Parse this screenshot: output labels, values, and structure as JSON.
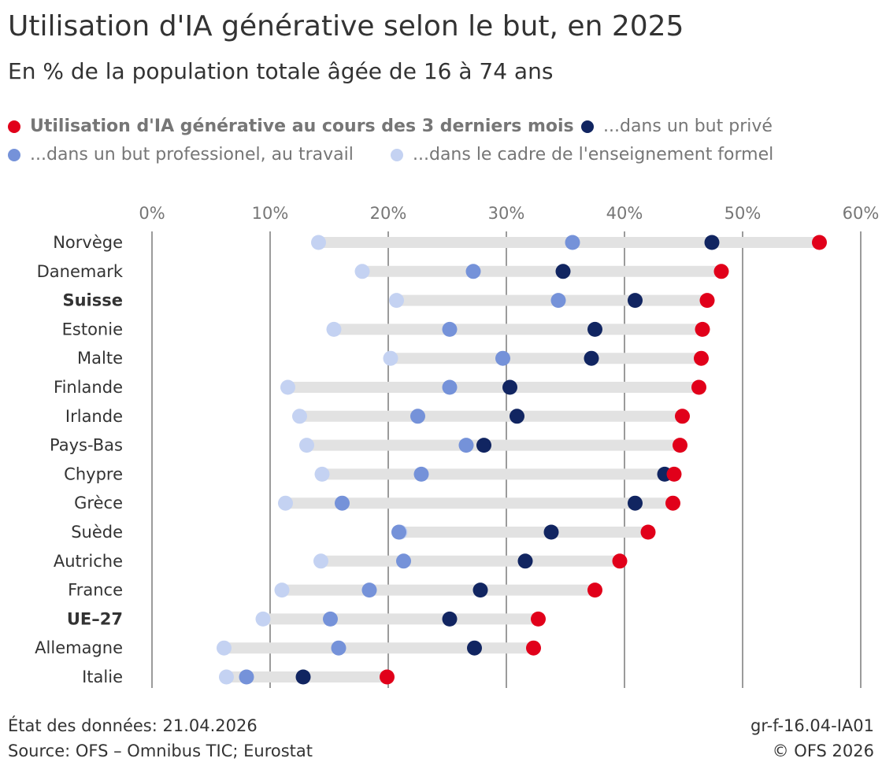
{
  "header": {
    "title": "Utilisation d'IA générative selon le but, en 2025",
    "subtitle": "En % de la population totale âgée de 16 à 74 ans"
  },
  "legend": [
    {
      "label": "Utilisation d'IA générative au cours des 3 derniers mois",
      "color": "#e1001a",
      "bold": true
    },
    {
      "label": "...dans un but privé",
      "color": "#112561",
      "bold": false
    },
    {
      "label": "...dans un but professionel, au travail",
      "color": "#7592d9",
      "bold": false
    },
    {
      "label": "...dans le cadre de l'enseignement formel",
      "color": "#c4d2f2",
      "bold": false
    }
  ],
  "footer": {
    "date": "État des données: 21.04.2026",
    "source": "Source: OFS – Omnibus TIC; Eurostat",
    "code": "gr-f-16.04-IA01",
    "copyright": "© OFS 2026"
  },
  "chart_data": {
    "type": "scatter",
    "orientation": "horizontal dot plot",
    "xlim": [
      0,
      60
    ],
    "x_ticks": [
      "0%",
      "10%",
      "20%",
      "30%",
      "40%",
      "50%",
      "60%"
    ],
    "x_tick_values": [
      0,
      10,
      20,
      30,
      40,
      50,
      60
    ],
    "grid": true,
    "legend_position": "top",
    "categories": [
      "Norvège",
      "Danemark",
      "Suisse",
      "Estonie",
      "Malte",
      "Finlande",
      "Irlande",
      "Pays-Bas",
      "Chypre",
      "Grèce",
      "Suède",
      "Autriche",
      "France",
      "UE–27",
      "Allemagne",
      "Italie"
    ],
    "bold_categories": [
      "Suisse",
      "UE–27"
    ],
    "series": [
      {
        "name": "Utilisation d'IA générative au cours des 3 derniers mois",
        "color": "#e1001a",
        "values": [
          56.5,
          48.2,
          47.0,
          46.6,
          46.5,
          46.3,
          44.9,
          44.7,
          44.2,
          44.1,
          42.0,
          39.6,
          37.5,
          32.7,
          32.3,
          19.9
        ]
      },
      {
        "name": "...dans un but privé",
        "color": "#112561",
        "values": [
          47.4,
          34.8,
          40.9,
          37.5,
          37.2,
          30.3,
          30.9,
          28.1,
          43.4,
          40.9,
          33.8,
          31.6,
          27.8,
          25.2,
          27.3,
          12.8
        ]
      },
      {
        "name": "...dans un but professionel, au travail",
        "color": "#7592d9",
        "values": [
          35.6,
          27.2,
          34.4,
          25.2,
          29.7,
          25.2,
          22.5,
          26.6,
          22.8,
          16.1,
          20.9,
          21.3,
          18.4,
          15.1,
          15.8,
          8.0
        ]
      },
      {
        "name": "...dans le cadre de l'enseignement formel",
        "color": "#c4d2f2",
        "values": [
          14.1,
          17.8,
          20.7,
          15.4,
          20.2,
          11.5,
          12.5,
          13.1,
          14.4,
          11.3,
          21.0,
          14.3,
          11.0,
          9.4,
          6.1,
          6.3
        ]
      }
    ]
  }
}
